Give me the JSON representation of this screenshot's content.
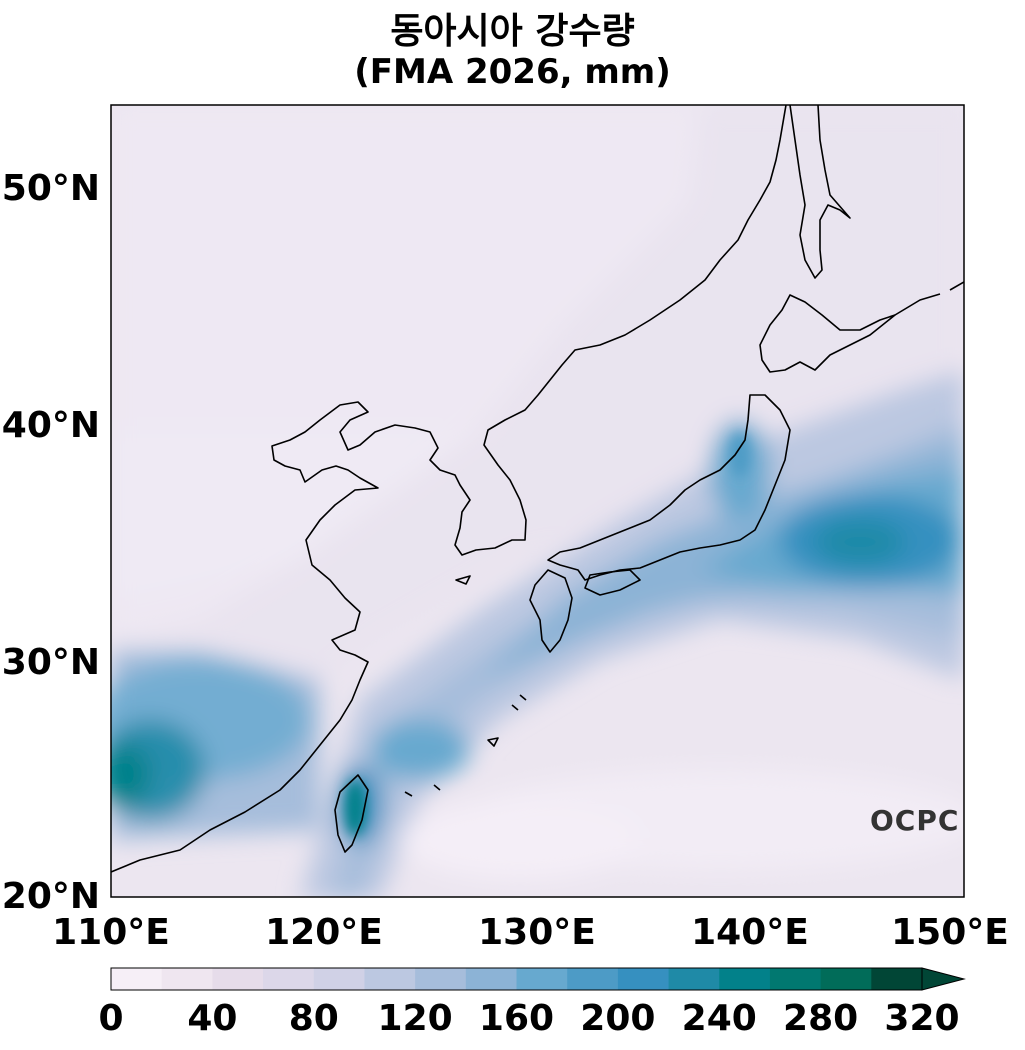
{
  "title_line1": "동아시아 강수량",
  "title_line2": "(FMA 2026, mm)",
  "y_ticks": [
    "50°N",
    "40°N",
    "30°N",
    "20°N"
  ],
  "x_ticks": [
    "110°E",
    "120°E",
    "130°E",
    "140°E",
    "150°E"
  ],
  "colorbar": {
    "labels": [
      "0",
      "40",
      "80",
      "120",
      "160",
      "200",
      "240",
      "280",
      "320"
    ],
    "colors": [
      "#f6eff7",
      "#efe6f0",
      "#e6dcea",
      "#dcd7e9",
      "#d0d1e6",
      "#bcc8e1",
      "#a6bddb",
      "#8cb3d6",
      "#67a9cf",
      "#4d9bc6",
      "#3690c0",
      "#1f8aa7",
      "#02818a",
      "#017870",
      "#016c59",
      "#014636"
    ],
    "extend": "max"
  },
  "logo_text": "OCPC",
  "map_extent": {
    "lon": [
      110,
      150
    ],
    "lat": [
      20,
      53.5
    ]
  }
}
